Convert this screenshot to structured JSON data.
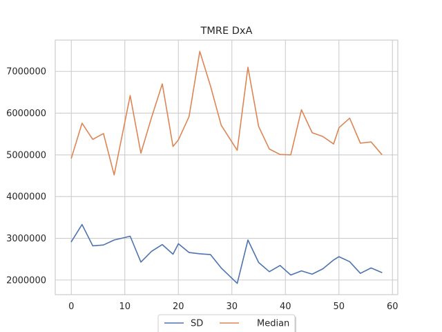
{
  "chart_data": {
    "type": "line",
    "title": "TMRE DxA",
    "xlabel": "",
    "ylabel": "",
    "xlim": [
      -3,
      61
    ],
    "ylim": [
      1650000,
      7750000
    ],
    "xticks": [
      0,
      10,
      20,
      30,
      40,
      50,
      60
    ],
    "yticks": [
      2000000,
      3000000,
      4000000,
      5000000,
      6000000,
      7000000
    ],
    "xtick_labels": [
      "0",
      "10",
      "20",
      "30",
      "40",
      "50",
      "60"
    ],
    "ytick_labels": [
      "2000000",
      "3000000",
      "4000000",
      "5000000",
      "6000000",
      "7000000"
    ],
    "grid": true,
    "legend_position": "bottom-center",
    "series": [
      {
        "name": "SD",
        "color": "#4c72b0",
        "x": [
          0,
          2,
          4,
          6,
          8,
          10,
          11,
          13,
          15,
          17,
          19,
          20,
          22,
          24,
          26,
          28,
          31,
          33,
          35,
          37,
          39,
          41,
          43,
          45,
          47,
          49,
          50,
          52,
          54,
          56,
          58
        ],
        "y": [
          2920000,
          3330000,
          2820000,
          2840000,
          2960000,
          3020000,
          3050000,
          2430000,
          2690000,
          2850000,
          2620000,
          2870000,
          2660000,
          2630000,
          2610000,
          2290000,
          1920000,
          2960000,
          2420000,
          2200000,
          2350000,
          2120000,
          2220000,
          2140000,
          2270000,
          2480000,
          2560000,
          2440000,
          2160000,
          2290000,
          2180000
        ]
      },
      {
        "name": "Median",
        "color": "#dd8452",
        "x": [
          0,
          2,
          4,
          6,
          8,
          11,
          13,
          15,
          17,
          19,
          20,
          22,
          24,
          26,
          28,
          31,
          33,
          35,
          37,
          39,
          41,
          43,
          45,
          47,
          49,
          50,
          52,
          54,
          56,
          58
        ],
        "y": [
          4920000,
          5760000,
          5370000,
          5510000,
          4520000,
          6420000,
          5040000,
          5900000,
          6700000,
          5200000,
          5360000,
          5920000,
          7480000,
          6650000,
          5710000,
          5110000,
          7100000,
          5680000,
          5140000,
          5010000,
          5000000,
          6080000,
          5530000,
          5440000,
          5260000,
          5650000,
          5880000,
          5280000,
          5310000,
          5010000
        ]
      }
    ]
  }
}
